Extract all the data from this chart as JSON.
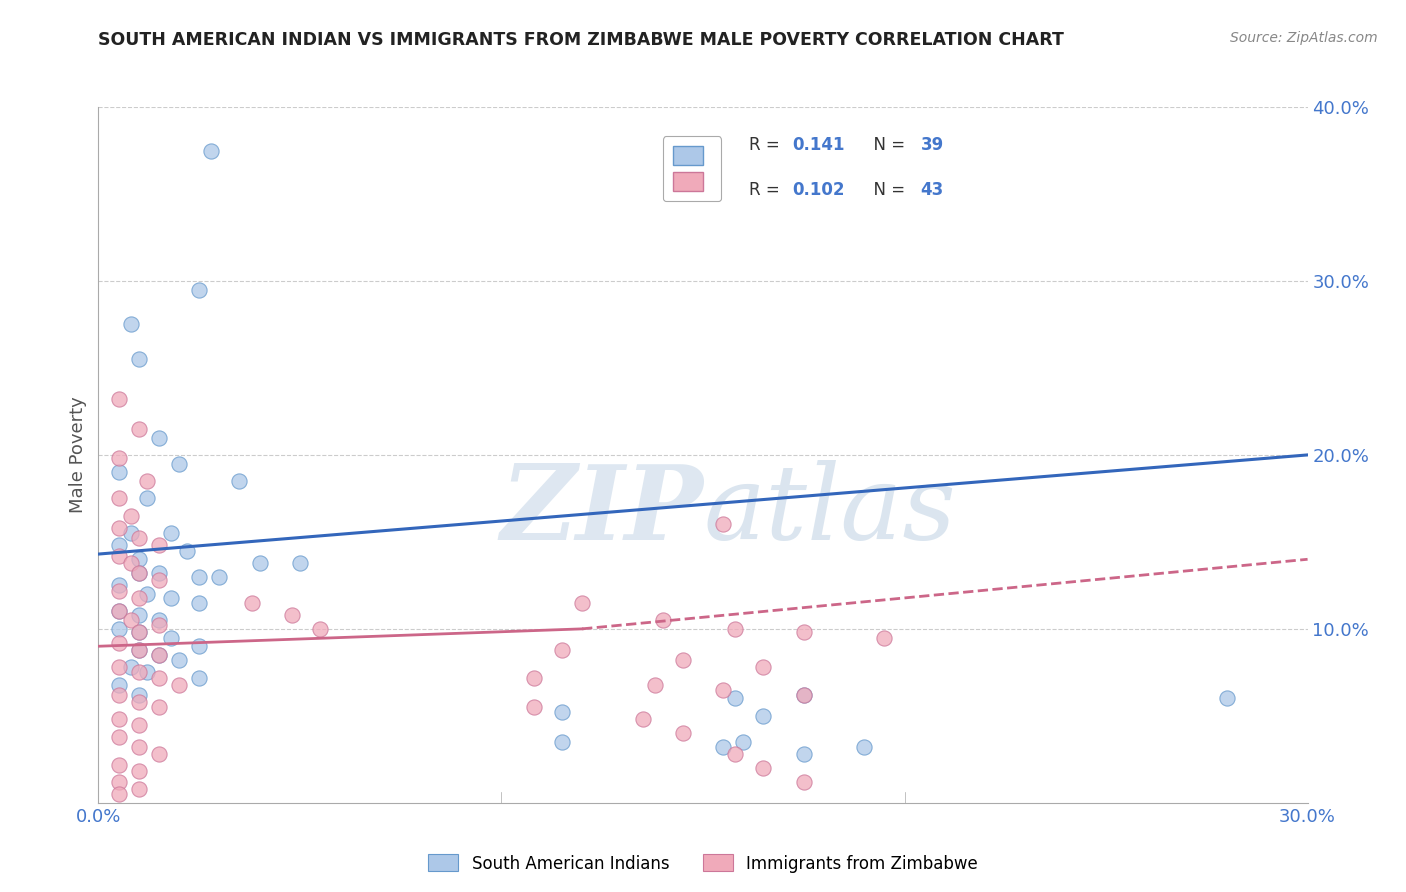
{
  "title": "SOUTH AMERICAN INDIAN VS IMMIGRANTS FROM ZIMBABWE MALE POVERTY CORRELATION CHART",
  "source": "Source: ZipAtlas.com",
  "xlim": [
    0.0,
    0.3
  ],
  "ylim": [
    0.0,
    0.4
  ],
  "ylabel": "Male Poverty",
  "legend_labels": [
    "South American Indians",
    "Immigrants from Zimbabwe"
  ],
  "watermark_text": "ZIPatlas",
  "blue_color": "#adc8e8",
  "pink_color": "#f0aaba",
  "blue_edge": "#6699cc",
  "pink_edge": "#cc7799",
  "blue_line_color": "#3366bb",
  "pink_line_color": "#cc6688",
  "ytick_color": "#4477cc",
  "xtick_color": "#4477cc",
  "blue_scatter": [
    [
      0.028,
      0.375
    ],
    [
      0.025,
      0.295
    ],
    [
      0.008,
      0.275
    ],
    [
      0.01,
      0.255
    ],
    [
      0.015,
      0.21
    ],
    [
      0.02,
      0.195
    ],
    [
      0.005,
      0.19
    ],
    [
      0.035,
      0.185
    ],
    [
      0.012,
      0.175
    ],
    [
      0.008,
      0.155
    ],
    [
      0.018,
      0.155
    ],
    [
      0.005,
      0.148
    ],
    [
      0.022,
      0.145
    ],
    [
      0.01,
      0.14
    ],
    [
      0.04,
      0.138
    ],
    [
      0.05,
      0.138
    ],
    [
      0.01,
      0.132
    ],
    [
      0.015,
      0.132
    ],
    [
      0.025,
      0.13
    ],
    [
      0.03,
      0.13
    ],
    [
      0.005,
      0.125
    ],
    [
      0.012,
      0.12
    ],
    [
      0.018,
      0.118
    ],
    [
      0.025,
      0.115
    ],
    [
      0.005,
      0.11
    ],
    [
      0.01,
      0.108
    ],
    [
      0.015,
      0.105
    ],
    [
      0.005,
      0.1
    ],
    [
      0.01,
      0.098
    ],
    [
      0.018,
      0.095
    ],
    [
      0.025,
      0.09
    ],
    [
      0.01,
      0.088
    ],
    [
      0.015,
      0.085
    ],
    [
      0.02,
      0.082
    ],
    [
      0.008,
      0.078
    ],
    [
      0.012,
      0.075
    ],
    [
      0.025,
      0.072
    ],
    [
      0.005,
      0.068
    ],
    [
      0.01,
      0.062
    ],
    [
      0.158,
      0.06
    ],
    [
      0.175,
      0.062
    ],
    [
      0.28,
      0.06
    ],
    [
      0.115,
      0.052
    ],
    [
      0.165,
      0.05
    ],
    [
      0.115,
      0.035
    ],
    [
      0.16,
      0.035
    ],
    [
      0.155,
      0.032
    ],
    [
      0.19,
      0.032
    ],
    [
      0.175,
      0.028
    ]
  ],
  "pink_scatter": [
    [
      0.005,
      0.232
    ],
    [
      0.01,
      0.215
    ],
    [
      0.005,
      0.198
    ],
    [
      0.012,
      0.185
    ],
    [
      0.005,
      0.175
    ],
    [
      0.008,
      0.165
    ],
    [
      0.005,
      0.158
    ],
    [
      0.01,
      0.152
    ],
    [
      0.015,
      0.148
    ],
    [
      0.005,
      0.142
    ],
    [
      0.008,
      0.138
    ],
    [
      0.01,
      0.132
    ],
    [
      0.015,
      0.128
    ],
    [
      0.005,
      0.122
    ],
    [
      0.01,
      0.118
    ],
    [
      0.005,
      0.11
    ],
    [
      0.008,
      0.105
    ],
    [
      0.015,
      0.102
    ],
    [
      0.01,
      0.098
    ],
    [
      0.005,
      0.092
    ],
    [
      0.01,
      0.088
    ],
    [
      0.015,
      0.085
    ],
    [
      0.005,
      0.078
    ],
    [
      0.01,
      0.075
    ],
    [
      0.015,
      0.072
    ],
    [
      0.02,
      0.068
    ],
    [
      0.005,
      0.062
    ],
    [
      0.01,
      0.058
    ],
    [
      0.015,
      0.055
    ],
    [
      0.005,
      0.048
    ],
    [
      0.01,
      0.045
    ],
    [
      0.005,
      0.038
    ],
    [
      0.01,
      0.032
    ],
    [
      0.015,
      0.028
    ],
    [
      0.005,
      0.022
    ],
    [
      0.01,
      0.018
    ],
    [
      0.005,
      0.012
    ],
    [
      0.01,
      0.008
    ],
    [
      0.005,
      0.005
    ],
    [
      0.038,
      0.115
    ],
    [
      0.048,
      0.108
    ],
    [
      0.055,
      0.1
    ],
    [
      0.155,
      0.16
    ],
    [
      0.12,
      0.115
    ],
    [
      0.14,
      0.105
    ],
    [
      0.158,
      0.1
    ],
    [
      0.175,
      0.098
    ],
    [
      0.195,
      0.095
    ],
    [
      0.115,
      0.088
    ],
    [
      0.145,
      0.082
    ],
    [
      0.165,
      0.078
    ],
    [
      0.108,
      0.072
    ],
    [
      0.138,
      0.068
    ],
    [
      0.155,
      0.065
    ],
    [
      0.175,
      0.062
    ],
    [
      0.108,
      0.055
    ],
    [
      0.135,
      0.048
    ],
    [
      0.145,
      0.04
    ],
    [
      0.158,
      0.028
    ],
    [
      0.165,
      0.02
    ],
    [
      0.175,
      0.012
    ]
  ],
  "blue_line": [
    [
      0.0,
      0.143
    ],
    [
      0.3,
      0.2
    ]
  ],
  "pink_line_solid": [
    [
      0.0,
      0.09
    ],
    [
      0.12,
      0.1
    ]
  ],
  "pink_line_dash": [
    [
      0.12,
      0.1
    ],
    [
      0.3,
      0.14
    ]
  ]
}
